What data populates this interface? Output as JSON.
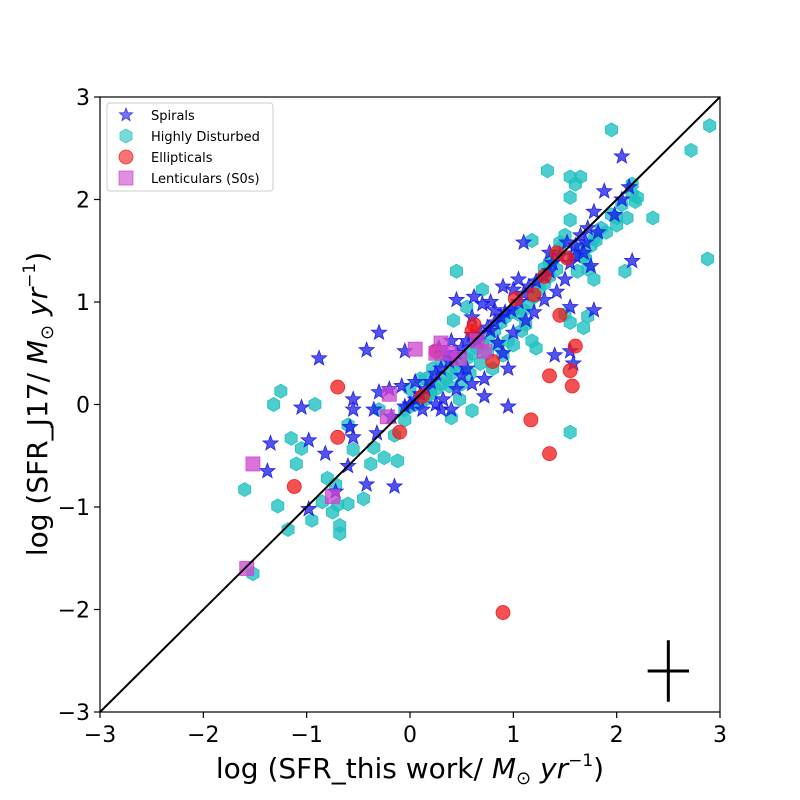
{
  "chart_data": {
    "type": "scatter",
    "xlabel": "log (SFR_this work/ M_⊙ yr^{-1})",
    "ylabel": "log (SFR_J17/ M_⊙ yr^{-1})",
    "xlim": [
      -3,
      3
    ],
    "ylim": [
      -3,
      3
    ],
    "x_ticks": [
      -3,
      -2,
      -1,
      0,
      1,
      2,
      3
    ],
    "y_ticks": [
      -3,
      -2,
      -1,
      0,
      1,
      2,
      3
    ],
    "tick_labels": [
      "−3",
      "−2",
      "−1",
      "0",
      "1",
      "2",
      "3"
    ],
    "grid": false,
    "legend_position": "top-left",
    "reference_line": {
      "type": "one-to-one",
      "from": [
        -3,
        -3
      ],
      "to": [
        3,
        3
      ]
    },
    "error_cross": {
      "x": 2.5,
      "y": -2.6,
      "x_err": 0.2,
      "y_err": 0.3
    },
    "series": [
      {
        "name": "Highly Disturbed",
        "marker": "hexagon",
        "color": "#20c0c0",
        "points": [
          [
            2.9,
            2.72
          ],
          [
            2.72,
            2.48
          ],
          [
            2.88,
            1.42
          ],
          [
            1.95,
            2.68
          ],
          [
            1.33,
            2.28
          ],
          [
            1.55,
            2.22
          ],
          [
            1.65,
            2.22
          ],
          [
            1.6,
            2.15
          ],
          [
            1.55,
            2.02
          ],
          [
            2.15,
            2.15
          ],
          [
            2.15,
            2.05
          ],
          [
            2.18,
            1.98
          ],
          [
            2.05,
            1.95
          ],
          [
            1.95,
            1.85
          ],
          [
            2.0,
            1.75
          ],
          [
            2.1,
            1.82
          ],
          [
            2.35,
            1.82
          ],
          [
            1.85,
            1.72
          ],
          [
            1.78,
            1.62
          ],
          [
            1.65,
            1.52
          ],
          [
            1.75,
            1.55
          ],
          [
            1.68,
            1.45
          ],
          [
            1.72,
            1.32
          ],
          [
            1.78,
            1.22
          ],
          [
            2.08,
            1.3
          ],
          [
            1.18,
            1.6
          ],
          [
            1.55,
            1.8
          ],
          [
            1.5,
            1.65
          ],
          [
            1.45,
            1.52
          ],
          [
            1.4,
            1.45
          ],
          [
            1.35,
            1.38
          ],
          [
            1.42,
            1.32
          ],
          [
            1.35,
            1.25
          ],
          [
            1.3,
            1.18
          ],
          [
            1.25,
            1.12
          ],
          [
            1.2,
            1.05
          ],
          [
            1.15,
            0.98
          ],
          [
            1.1,
            0.92
          ],
          [
            1.05,
            0.88
          ],
          [
            0.98,
            0.9
          ],
          [
            0.92,
            0.85
          ],
          [
            0.88,
            0.8
          ],
          [
            0.82,
            0.72
          ],
          [
            0.76,
            0.66
          ],
          [
            0.7,
            0.6
          ],
          [
            0.65,
            0.55
          ],
          [
            0.6,
            0.5
          ],
          [
            0.55,
            0.45
          ],
          [
            0.5,
            0.4
          ],
          [
            0.45,
            0.35
          ],
          [
            0.4,
            0.3
          ],
          [
            0.35,
            0.25
          ],
          [
            0.3,
            0.2
          ],
          [
            0.25,
            0.15
          ],
          [
            0.2,
            0.1
          ],
          [
            0.15,
            0.05
          ],
          [
            0.1,
            0.02
          ],
          [
            0.05,
            0.0
          ],
          [
            0.0,
            -0.02
          ],
          [
            -0.05,
            -0.05
          ],
          [
            0.45,
            1.3
          ],
          [
            0.7,
            1.12
          ],
          [
            0.55,
            0.95
          ],
          [
            0.42,
            0.82
          ],
          [
            0.62,
            0.65
          ],
          [
            0.85,
            0.58
          ],
          [
            1.18,
            0.62
          ],
          [
            1.22,
            0.55
          ],
          [
            1.5,
            0.88
          ],
          [
            1.55,
            0.8
          ],
          [
            1.68,
            0.75
          ],
          [
            1.72,
            0.86
          ],
          [
            1.55,
            -0.27
          ],
          [
            0.6,
            -0.06
          ],
          [
            0.4,
            -0.13
          ],
          [
            0.2,
            0.12
          ],
          [
            0.1,
            0.25
          ],
          [
            0.3,
            0.42
          ],
          [
            0.5,
            0.2
          ],
          [
            0.8,
            0.35
          ],
          [
            0.9,
            0.48
          ],
          [
            1.0,
            0.58
          ],
          [
            1.08,
            0.72
          ],
          [
            -1.25,
            0.13
          ],
          [
            -1.15,
            -0.33
          ],
          [
            -1.32,
            0.0
          ],
          [
            -0.92,
            0.0
          ],
          [
            -1.05,
            -0.43
          ],
          [
            -1.1,
            -0.58
          ],
          [
            -1.28,
            -0.99
          ],
          [
            -1.18,
            -1.22
          ],
          [
            -0.95,
            -1.13
          ],
          [
            -0.85,
            -0.95
          ],
          [
            -0.8,
            -0.72
          ],
          [
            -0.72,
            -0.78
          ],
          [
            -0.7,
            -0.98
          ],
          [
            -0.68,
            -1.18
          ],
          [
            -0.68,
            -1.26
          ],
          [
            -0.75,
            -1.05
          ],
          [
            -0.6,
            -0.97
          ],
          [
            -0.55,
            -0.44
          ],
          [
            -0.45,
            -0.92
          ],
          [
            -0.38,
            -0.58
          ],
          [
            -0.25,
            -0.52
          ],
          [
            -0.12,
            -0.55
          ],
          [
            -0.35,
            -0.42
          ],
          [
            -0.15,
            -0.3
          ],
          [
            -0.05,
            -0.15
          ],
          [
            -0.3,
            -0.05
          ],
          [
            -0.6,
            -0.2
          ],
          [
            -1.6,
            -0.83
          ],
          [
            -1.52,
            -1.65
          ],
          [
            0.0,
            0.15
          ],
          [
            0.15,
            0.25
          ],
          [
            0.22,
            0.35
          ],
          [
            0.38,
            0.18
          ],
          [
            0.48,
            0.05
          ],
          [
            0.58,
            0.3
          ],
          [
            0.68,
            0.4
          ],
          [
            0.75,
            0.5
          ],
          [
            0.95,
            0.62
          ],
          [
            1.12,
            0.78
          ],
          [
            1.25,
            1.2
          ],
          [
            1.3,
            1.33
          ],
          [
            1.38,
            1.4
          ],
          [
            1.45,
            1.58
          ],
          [
            1.58,
            1.45
          ],
          [
            1.62,
            1.3
          ],
          [
            1.7,
            1.42
          ],
          [
            1.8,
            1.6
          ],
          [
            1.9,
            1.68
          ],
          [
            2.0,
            1.82
          ],
          [
            2.2,
            2.02
          ]
        ]
      },
      {
        "name": "Spirals",
        "marker": "star",
        "color": "#1a1ae8",
        "points": [
          [
            2.05,
            2.42
          ],
          [
            1.88,
            2.08
          ],
          [
            2.12,
            2.12
          ],
          [
            2.05,
            2.0
          ],
          [
            1.98,
            1.85
          ],
          [
            1.78,
            1.88
          ],
          [
            1.72,
            1.72
          ],
          [
            1.82,
            1.68
          ],
          [
            1.65,
            1.65
          ],
          [
            1.6,
            1.55
          ],
          [
            1.68,
            1.48
          ],
          [
            1.52,
            1.58
          ],
          [
            1.45,
            1.45
          ],
          [
            1.38,
            1.38
          ],
          [
            1.35,
            1.3
          ],
          [
            1.3,
            1.25
          ],
          [
            1.22,
            1.2
          ],
          [
            1.15,
            1.15
          ],
          [
            1.1,
            1.08
          ],
          [
            1.05,
            1.0
          ],
          [
            0.98,
            0.92
          ],
          [
            0.92,
            0.9
          ],
          [
            0.88,
            0.85
          ],
          [
            0.82,
            0.8
          ],
          [
            0.75,
            0.75
          ],
          [
            0.68,
            0.7
          ],
          [
            0.6,
            0.68
          ],
          [
            0.55,
            0.62
          ],
          [
            0.5,
            0.55
          ],
          [
            0.45,
            0.5
          ],
          [
            0.42,
            0.45
          ],
          [
            0.38,
            0.42
          ],
          [
            0.3,
            0.35
          ],
          [
            0.25,
            0.3
          ],
          [
            0.2,
            0.22
          ],
          [
            0.15,
            0.15
          ],
          [
            0.1,
            0.1
          ],
          [
            0.05,
            0.05
          ],
          [
            0.0,
            0.0
          ],
          [
            -0.05,
            -0.02
          ],
          [
            1.1,
            1.58
          ],
          [
            1.35,
            1.48
          ],
          [
            1.6,
            1.45
          ],
          [
            1.75,
            1.35
          ],
          [
            2.15,
            1.4
          ],
          [
            1.78,
            0.92
          ],
          [
            1.55,
            0.95
          ],
          [
            1.58,
            0.4
          ],
          [
            1.55,
            0.52
          ],
          [
            1.4,
            0.48
          ],
          [
            0.95,
            0.35
          ],
          [
            0.9,
            0.5
          ],
          [
            0.95,
            -0.02
          ],
          [
            0.72,
            0.08
          ],
          [
            0.72,
            0.25
          ],
          [
            0.55,
            0.35
          ],
          [
            0.45,
            0.15
          ],
          [
            0.32,
            0.05
          ],
          [
            0.3,
            -0.05
          ],
          [
            0.12,
            -0.05
          ],
          [
            0.05,
            0.22
          ],
          [
            -0.08,
            0.18
          ],
          [
            -0.05,
            0.52
          ],
          [
            -0.3,
            0.7
          ],
          [
            -0.42,
            0.53
          ],
          [
            -0.88,
            0.45
          ],
          [
            -1.05,
            -0.03
          ],
          [
            -1.35,
            -0.38
          ],
          [
            -1.38,
            -0.65
          ],
          [
            -0.98,
            -0.35
          ],
          [
            -0.82,
            -0.48
          ],
          [
            -0.6,
            -0.6
          ],
          [
            -0.55,
            -0.32
          ],
          [
            -0.58,
            -0.22
          ],
          [
            -0.55,
            -0.05
          ],
          [
            -0.55,
            0.05
          ],
          [
            -0.35,
            -0.05
          ],
          [
            -0.32,
            -0.28
          ],
          [
            -0.18,
            -0.12
          ],
          [
            -0.42,
            -0.78
          ],
          [
            -0.15,
            -0.8
          ],
          [
            -0.2,
            0.15
          ],
          [
            -0.3,
            0.12
          ],
          [
            0.45,
            1.02
          ],
          [
            0.6,
            0.85
          ],
          [
            0.62,
            1.05
          ],
          [
            0.7,
            0.98
          ],
          [
            0.78,
            1.0
          ],
          [
            0.82,
            0.92
          ],
          [
            0.9,
            1.15
          ],
          [
            1.0,
            1.12
          ],
          [
            1.05,
            1.22
          ],
          [
            0.78,
            0.72
          ],
          [
            0.65,
            0.62
          ],
          [
            0.5,
            0.28
          ],
          [
            0.4,
            0.62
          ],
          [
            0.35,
            0.5
          ],
          [
            0.28,
            0.55
          ],
          [
            -0.72,
            -0.85
          ],
          [
            -0.98,
            -1.02
          ],
          [
            0.25,
            0.0
          ],
          [
            0.4,
            -0.05
          ],
          [
            0.6,
            0.2
          ],
          [
            0.85,
            0.6
          ],
          [
            1.0,
            0.7
          ],
          [
            1.12,
            0.82
          ],
          [
            1.2,
            0.9
          ],
          [
            1.3,
            1.02
          ],
          [
            1.42,
            1.1
          ],
          [
            1.5,
            1.22
          ],
          [
            1.55,
            1.38
          ],
          [
            1.7,
            1.58
          ]
        ]
      },
      {
        "name": "Ellipticals",
        "marker": "circle",
        "color": "#f01818",
        "points": [
          [
            0.9,
            -2.03
          ],
          [
            1.35,
            -0.48
          ],
          [
            1.55,
            0.33
          ],
          [
            1.6,
            0.57
          ],
          [
            1.57,
            0.18
          ],
          [
            1.35,
            0.28
          ],
          [
            1.17,
            -0.15
          ],
          [
            0.8,
            0.42
          ],
          [
            1.45,
            0.87
          ],
          [
            1.2,
            1.07
          ],
          [
            1.02,
            1.03
          ],
          [
            1.3,
            1.25
          ],
          [
            1.42,
            1.48
          ],
          [
            1.52,
            1.43
          ],
          [
            0.62,
            0.78
          ],
          [
            0.6,
            0.72
          ],
          [
            0.25,
            0.52
          ],
          [
            0.12,
            0.08
          ],
          [
            -0.1,
            -0.27
          ],
          [
            -0.7,
            0.17
          ],
          [
            -0.7,
            -0.32
          ],
          [
            -1.12,
            -0.8
          ]
        ]
      },
      {
        "name": "Lenticulars (S0s)",
        "marker": "square",
        "color": "#cc44cc",
        "points": [
          [
            -1.52,
            -0.58
          ],
          [
            -1.58,
            -1.6
          ],
          [
            -0.75,
            -0.9
          ],
          [
            -0.2,
            0.1
          ],
          [
            -0.22,
            -0.12
          ],
          [
            0.05,
            0.54
          ],
          [
            0.3,
            0.6
          ],
          [
            0.25,
            0.5
          ],
          [
            0.38,
            0.5
          ],
          [
            0.72,
            0.52
          ],
          [
            0.65,
            0.62
          ],
          [
            0.48,
            0.45
          ]
        ]
      }
    ]
  }
}
